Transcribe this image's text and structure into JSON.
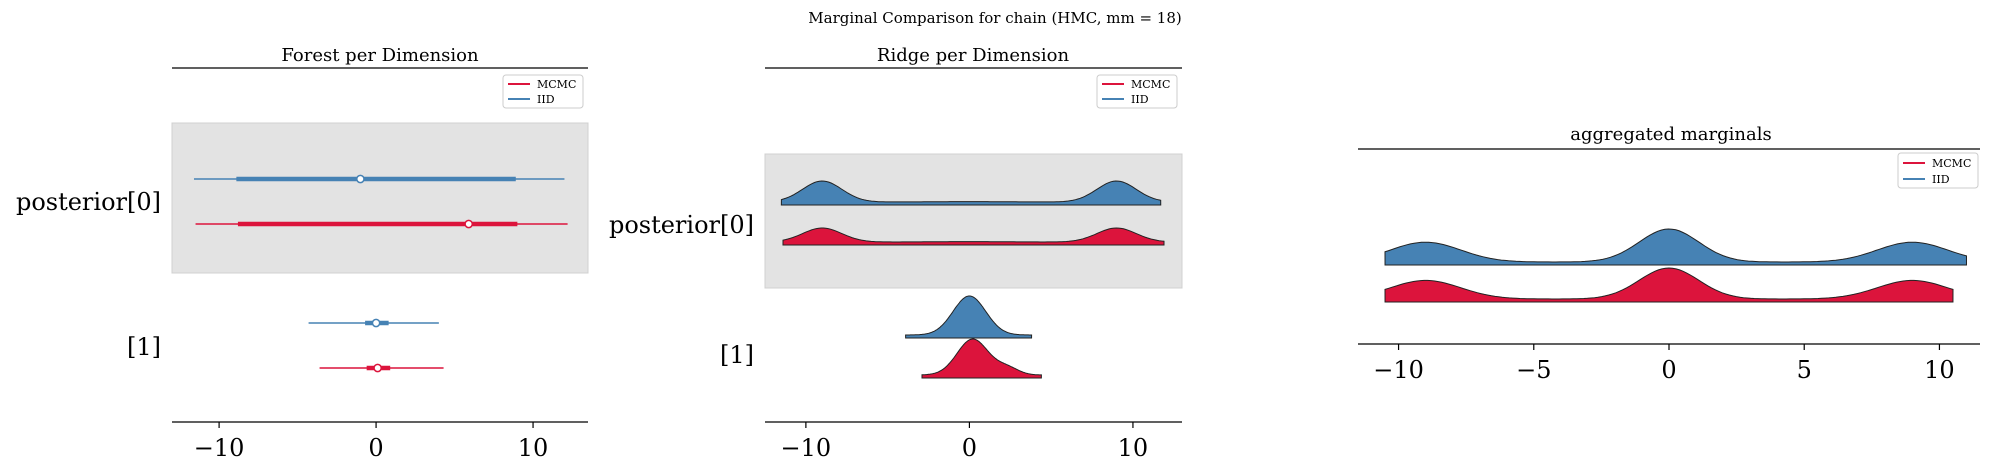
{
  "suptitle": "Marginal Comparison for chain (HMC, mm = 18)",
  "colors": {
    "mcmc": "#dc143c",
    "iid": "#4682b4",
    "band": "#e3e3e3"
  },
  "legend": [
    "MCMC",
    "IID"
  ],
  "chart_data": [
    {
      "type": "forest",
      "title": "Forest per Dimension",
      "xlim": [
        -13,
        13.5
      ],
      "xticks": [
        -10,
        0,
        10
      ],
      "xtick_labels": [
        "−10",
        "0",
        "10"
      ],
      "row_labels": [
        "posterior[0]",
        "[1]"
      ],
      "legend_placement": "top-right",
      "shaded_rows": [
        0
      ],
      "rows": [
        {
          "label": "posterior[0]",
          "iid": {
            "hdi_low": -11.6,
            "hdi_high": 12.0,
            "q25": -8.9,
            "q75": 8.9,
            "median": -1.0
          },
          "mcmc": {
            "hdi_low": -11.5,
            "hdi_high": 12.2,
            "q25": -8.8,
            "q75": 9.0,
            "median": 5.9
          }
        },
        {
          "label": "[1]",
          "iid": {
            "hdi_low": -4.3,
            "hdi_high": 4.0,
            "q25": -0.7,
            "q75": 0.8,
            "median": 0.0
          },
          "mcmc": {
            "hdi_low": -3.6,
            "hdi_high": 4.3,
            "q25": -0.6,
            "q75": 0.9,
            "median": 0.1
          }
        }
      ]
    },
    {
      "type": "ridge",
      "title": "Ridge per Dimension",
      "xlim": [
        -12.5,
        13
      ],
      "xticks": [
        -10,
        0,
        10
      ],
      "xtick_labels": [
        "−10",
        "0",
        "10"
      ],
      "row_labels": [
        "posterior[0]",
        "[1]"
      ],
      "legend_placement": "top-right",
      "shaded_rows": [
        0
      ],
      "rows": [
        {
          "label": "posterior[0]",
          "iid": {
            "range": [
              -11.5,
              11.7
            ],
            "components": [
              [
                -9,
                1.2,
                1
              ],
              [
                0,
                2,
                0.02
              ],
              [
                9,
                1.2,
                1
              ]
            ]
          },
          "mcmc": {
            "range": [
              -11.4,
              11.9
            ],
            "components": [
              [
                -9,
                1.2,
                1
              ],
              [
                0,
                2,
                0.03
              ],
              [
                9,
                1.2,
                1
              ]
            ]
          }
        },
        {
          "label": "[1]",
          "iid": {
            "range": [
              -3.9,
              3.8
            ],
            "components": [
              [
                0,
                1.0,
                1
              ]
            ]
          },
          "mcmc": {
            "range": [
              -2.9,
              4.4
            ],
            "components": [
              [
                0.2,
                0.95,
                1
              ],
              [
                2.3,
                0.7,
                0.2
              ]
            ]
          }
        }
      ]
    },
    {
      "type": "ridge",
      "title": "aggregated marginals",
      "xlim": [
        -11.5,
        11.5
      ],
      "xticks": [
        -10,
        -5,
        0,
        5,
        10
      ],
      "xtick_labels": [
        "−10",
        "−5",
        "0",
        "5",
        "10"
      ],
      "legend_placement": "top-right",
      "rows": [
        {
          "iid": {
            "range": [
              -10.5,
              11
            ],
            "components": [
              [
                -9,
                1.3,
                0.6
              ],
              [
                0,
                1.1,
                1
              ],
              [
                9,
                1.3,
                0.6
              ]
            ]
          },
          "mcmc": {
            "range": [
              -10.5,
              10.5
            ],
            "components": [
              [
                -9,
                1.3,
                0.6
              ],
              [
                0,
                1.1,
                1
              ],
              [
                9,
                1.3,
                0.6
              ]
            ]
          }
        }
      ]
    }
  ]
}
